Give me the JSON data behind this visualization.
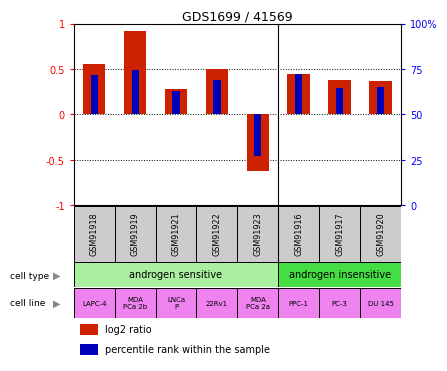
{
  "title": "GDS1699 / 41569",
  "samples": [
    "GSM91918",
    "GSM91919",
    "GSM91921",
    "GSM91922",
    "GSM91923",
    "GSM91916",
    "GSM91917",
    "GSM91920"
  ],
  "log2_ratio": [
    0.55,
    0.92,
    0.28,
    0.5,
    -0.62,
    0.45,
    0.38,
    0.37
  ],
  "percentile_rank": [
    0.43,
    0.49,
    0.26,
    0.38,
    -0.46,
    0.44,
    0.29,
    0.3
  ],
  "cell_types": [
    {
      "label": "androgen sensitive",
      "start": 0,
      "end": 5,
      "color": "#aaeea0"
    },
    {
      "label": "androgen insensitive",
      "start": 5,
      "end": 8,
      "color": "#44dd44"
    }
  ],
  "cell_lines": [
    {
      "label": "LAPC-4",
      "start": 0,
      "end": 1
    },
    {
      "label": "MDA\nPCa 2b",
      "start": 1,
      "end": 2
    },
    {
      "label": "LNCa\nP",
      "start": 2,
      "end": 3
    },
    {
      "label": "22Rv1",
      "start": 3,
      "end": 4
    },
    {
      "label": "MDA\nPCa 2a",
      "start": 4,
      "end": 5
    },
    {
      "label": "PPC-1",
      "start": 5,
      "end": 6
    },
    {
      "label": "PC-3",
      "start": 6,
      "end": 7
    },
    {
      "label": "DU 145",
      "start": 7,
      "end": 8
    }
  ],
  "cell_line_color": "#ee82ee",
  "sample_box_color": "#cccccc",
  "bar_color": "#cc2200",
  "percentile_color": "#0000bb",
  "ylim": [
    -1,
    1
  ],
  "yticks": [
    -1,
    -0.5,
    0,
    0.5,
    1
  ],
  "ytick_labels": [
    "-1",
    "-0.5",
    "0",
    "0.5",
    "1"
  ],
  "right_yticks": [
    0,
    25,
    50,
    75,
    100
  ],
  "right_ytick_labels": [
    "0",
    "25",
    "50",
    "75",
    "100%"
  ],
  "separator_after": 4,
  "n_samples": 8
}
